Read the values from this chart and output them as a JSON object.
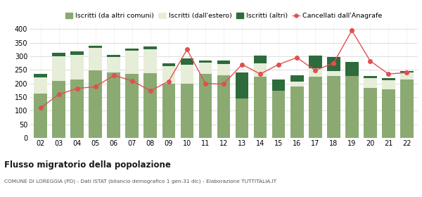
{
  "years": [
    "02",
    "03",
    "04",
    "05",
    "06",
    "07",
    "08",
    "09",
    "10",
    "11",
    "12",
    "13",
    "14",
    "15",
    "16",
    "17",
    "18",
    "19",
    "20",
    "21",
    "22"
  ],
  "iscritti_altri_comuni": [
    163,
    210,
    215,
    247,
    240,
    235,
    237,
    200,
    200,
    235,
    230,
    145,
    225,
    173,
    188,
    225,
    228,
    228,
    183,
    178,
    215
  ],
  "iscritti_estero": [
    60,
    90,
    90,
    85,
    58,
    85,
    88,
    65,
    70,
    42,
    42,
    0,
    50,
    0,
    20,
    30,
    18,
    0,
    38,
    35,
    25
  ],
  "iscritti_altri": [
    12,
    12,
    12,
    8,
    8,
    8,
    10,
    8,
    22,
    8,
    12,
    95,
    28,
    42,
    22,
    48,
    52,
    52,
    6,
    6,
    5
  ],
  "cancellati": [
    110,
    160,
    182,
    188,
    230,
    210,
    173,
    208,
    325,
    200,
    198,
    270,
    235,
    270,
    295,
    248,
    275,
    395,
    283,
    235,
    240
  ],
  "color_altri_comuni": "#8aaa72",
  "color_estero": "#e6edd8",
  "color_altri": "#2d6b3c",
  "color_cancellati": "#e05050",
  "bg_color": "#ffffff",
  "grid_color": "#d0d0d0",
  "ylim": [
    0,
    420
  ],
  "yticks": [
    0,
    50,
    100,
    150,
    200,
    250,
    300,
    350,
    400
  ],
  "title": "Flusso migratorio della popolazione",
  "subtitle": "COMUNE DI LOREGGIA (PD) - Dati ISTAT (bilancio demografico 1 gen-31 dic) - Elaborazione TUTTITALIA.IT",
  "legend_labels": [
    "Iscritti (da altri comuni)",
    "Iscritti (dall'estero)",
    "Iscritti (altri)",
    "Cancellati dall'Anagrafe"
  ]
}
